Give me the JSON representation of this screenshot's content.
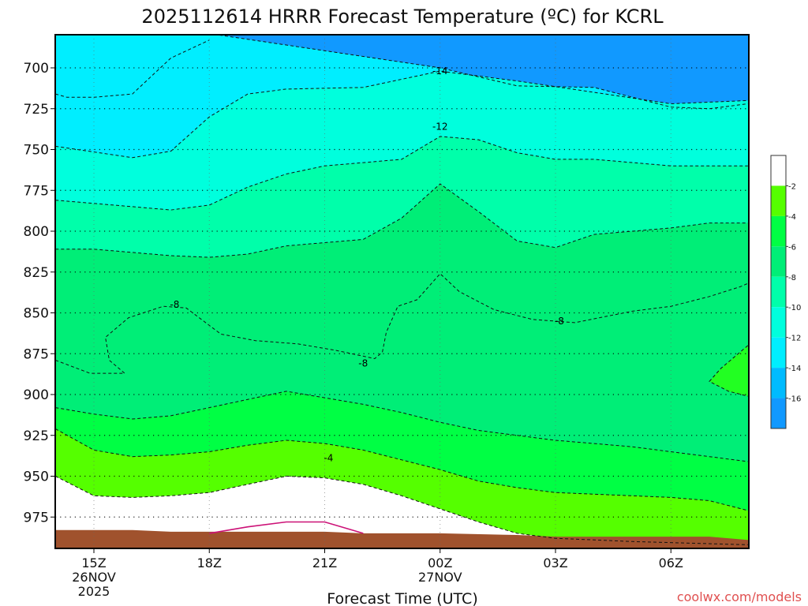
{
  "chart_data": {
    "type": "contour",
    "title": "2025112614 HRRR Forecast Temperature (ºC) for KCRL",
    "xlabel": "Forecast Time (UTC)",
    "ylabel": "",
    "x_ticks": [
      {
        "label": "15Z",
        "sub": [
          "26NOV",
          "2025"
        ],
        "hour": 0
      },
      {
        "label": "18Z",
        "sub": [],
        "hour": 3
      },
      {
        "label": "21Z",
        "sub": [],
        "hour": 6
      },
      {
        "label": "00Z",
        "sub": [
          "27NOV"
        ],
        "hour": 9
      },
      {
        "label": "03Z",
        "sub": [],
        "hour": 12
      },
      {
        "label": "06Z",
        "sub": [],
        "hour": 15
      }
    ],
    "xlim": [
      -1,
      17
    ],
    "y_ticks": [
      "700",
      "725",
      "750",
      "775",
      "800",
      "825",
      "850",
      "875",
      "900",
      "925",
      "950",
      "975"
    ],
    "ylim": [
      682,
      992
    ],
    "grid": true,
    "colorbar": {
      "labels": [
        "-2",
        "-4",
        "-6",
        "-8",
        "-10",
        "-12",
        "-14",
        "-16"
      ],
      "colors": [
        "#ffffff",
        "#55ff00",
        "#00ff44",
        "#00ee77",
        "#00ffaa",
        "#00ffdd",
        "#00eeff",
        "#00bbff",
        "#1199ff"
      ]
    },
    "contour_labels": [
      {
        "text": "-14",
        "hour": 9.0,
        "p": 702
      },
      {
        "text": "-12",
        "hour": 9.0,
        "p": 736
      },
      {
        "text": "-8",
        "hour": 2.1,
        "p": 845
      },
      {
        "text": "-8",
        "hour": 7.0,
        "p": 881
      },
      {
        "text": "-8",
        "hour": 12.1,
        "p": 855
      },
      {
        "text": "-4",
        "hour": 6.1,
        "p": 939
      }
    ],
    "fill_bands": [
      {
        "color": "#1199ff",
        "upper": null,
        "lower": "m16"
      },
      {
        "color": "#00bbff",
        "upper": "m16",
        "lower": "m14"
      },
      {
        "color": "#00eeff",
        "upper": "m14",
        "lower": "m12"
      },
      {
        "color": "#00ffdd",
        "upper": "m12",
        "lower": "m11"
      },
      {
        "color": "#00ffaa",
        "upper": "m11",
        "lower": "m10"
      },
      {
        "color": "#00ee77",
        "upper": "m10",
        "lower": "m6"
      },
      {
        "color": "#00ff44",
        "upper": "m6",
        "lower": "m5"
      },
      {
        "color": "#55ff00",
        "upper": "m5",
        "lower": "m3"
      },
      {
        "color": "#ffffff",
        "upper": "m3",
        "lower": null
      }
    ],
    "contours": {
      "m16": [
        [
          -1,
          716
        ],
        [
          -0.7,
          718
        ],
        [
          0,
          718
        ],
        [
          1,
          716
        ],
        [
          2,
          694
        ],
        [
          3,
          683
        ]
      ],
      "m14": [
        [
          -1,
          665
        ],
        [
          9,
          700
        ],
        [
          11,
          711
        ],
        [
          13,
          712
        ],
        [
          15,
          724
        ],
        [
          16,
          725
        ],
        [
          17,
          722
        ]
      ],
      "m12": [
        [
          -1,
          748
        ],
        [
          1,
          755
        ],
        [
          2,
          751
        ],
        [
          3,
          730
        ],
        [
          4,
          716
        ],
        [
          5,
          713
        ],
        [
          7,
          712
        ],
        [
          9,
          702
        ],
        [
          11,
          708
        ],
        [
          13,
          715
        ],
        [
          15,
          722
        ],
        [
          17,
          720
        ]
      ],
      "m11": [
        [
          -1,
          781
        ],
        [
          0,
          783
        ],
        [
          1,
          785
        ],
        [
          2,
          787
        ],
        [
          3,
          784
        ],
        [
          4,
          773
        ],
        [
          5,
          765
        ],
        [
          6,
          760
        ],
        [
          7,
          758
        ],
        [
          8,
          756
        ],
        [
          9,
          742
        ],
        [
          10,
          744
        ],
        [
          11,
          752
        ],
        [
          12,
          756
        ],
        [
          13,
          756
        ],
        [
          15,
          760
        ],
        [
          17,
          760
        ]
      ],
      "m10": [
        [
          -1,
          811
        ],
        [
          0,
          811
        ],
        [
          2,
          815
        ],
        [
          3,
          816
        ],
        [
          4,
          814
        ],
        [
          5,
          809
        ],
        [
          6,
          807
        ],
        [
          7,
          805
        ],
        [
          8,
          792
        ],
        [
          9,
          771
        ],
        [
          10,
          788
        ],
        [
          11,
          806
        ],
        [
          12,
          810
        ],
        [
          13,
          802
        ],
        [
          15,
          798
        ],
        [
          16,
          795
        ],
        [
          17,
          795
        ]
      ],
      "m8a": [
        [
          -1,
          879
        ],
        [
          -0.1,
          887
        ],
        [
          0.8,
          887
        ],
        [
          0.4,
          879
        ],
        [
          0.3,
          865
        ],
        [
          0.9,
          853
        ],
        [
          1.8,
          846
        ],
        [
          2.4,
          847
        ],
        [
          3.3,
          863
        ],
        [
          4.2,
          867
        ],
        [
          5.3,
          869
        ],
        [
          6.3,
          873
        ],
        [
          7.3,
          878
        ],
        [
          7.5,
          874
        ],
        [
          7.6,
          862
        ],
        [
          7.9,
          846
        ],
        [
          8.4,
          842
        ],
        [
          9.0,
          826
        ],
        [
          9.5,
          837
        ],
        [
          10.4,
          848
        ],
        [
          11.4,
          854
        ],
        [
          12.5,
          856
        ],
        [
          14.0,
          849
        ],
        [
          15.0,
          846
        ],
        [
          16.0,
          840
        ],
        [
          16.8,
          834
        ],
        [
          17,
          832
        ]
      ],
      "m8b": [
        [
          17,
          870
        ],
        [
          16.3,
          884
        ],
        [
          16.0,
          892
        ],
        [
          16.5,
          898
        ],
        [
          17,
          901
        ]
      ],
      "m6": [
        [
          -1,
          908
        ],
        [
          0,
          912
        ],
        [
          1,
          915
        ],
        [
          2,
          913
        ],
        [
          3,
          908
        ],
        [
          4,
          903
        ],
        [
          5,
          898
        ],
        [
          6,
          902
        ],
        [
          7,
          906
        ],
        [
          8,
          911
        ],
        [
          9,
          917
        ],
        [
          10,
          922
        ],
        [
          11,
          925
        ],
        [
          12,
          928
        ],
        [
          13,
          930
        ],
        [
          14,
          932
        ],
        [
          15,
          935
        ],
        [
          16,
          938
        ],
        [
          17,
          941
        ]
      ],
      "m5": [
        [
          -1,
          921
        ],
        [
          0,
          934
        ],
        [
          1,
          938
        ],
        [
          2,
          937
        ],
        [
          3,
          935
        ],
        [
          4,
          931
        ],
        [
          5,
          928
        ],
        [
          6,
          930
        ],
        [
          7,
          934
        ],
        [
          8,
          940
        ],
        [
          9,
          946
        ],
        [
          10,
          953
        ],
        [
          11,
          957
        ],
        [
          12,
          960
        ],
        [
          13,
          961
        ],
        [
          14,
          962
        ],
        [
          15,
          963
        ],
        [
          16,
          965
        ],
        [
          17,
          971
        ]
      ],
      "m3": [
        [
          -1,
          950
        ],
        [
          0,
          962
        ],
        [
          1,
          963
        ],
        [
          2,
          962
        ],
        [
          3,
          960
        ],
        [
          4,
          955
        ],
        [
          5,
          950
        ],
        [
          6,
          951
        ],
        [
          7,
          955
        ],
        [
          8,
          962
        ],
        [
          9,
          970
        ],
        [
          10,
          978
        ],
        [
          11,
          985
        ],
        [
          12,
          988
        ],
        [
          14,
          990
        ],
        [
          17,
          992
        ]
      ],
      "m1": [
        [
          3,
          985
        ],
        [
          4,
          981
        ],
        [
          5,
          978
        ],
        [
          6,
          978
        ],
        [
          7,
          985
        ]
      ]
    },
    "ground": [
      [
        -1,
        983
      ],
      [
        1,
        983
      ],
      [
        2,
        984
      ],
      [
        4,
        984
      ],
      [
        6,
        984
      ],
      [
        7,
        985
      ],
      [
        9,
        985
      ],
      [
        11,
        986
      ],
      [
        12,
        987
      ],
      [
        16,
        987
      ],
      [
        17,
        989
      ]
    ]
  },
  "credit": "coolwx.com/models"
}
